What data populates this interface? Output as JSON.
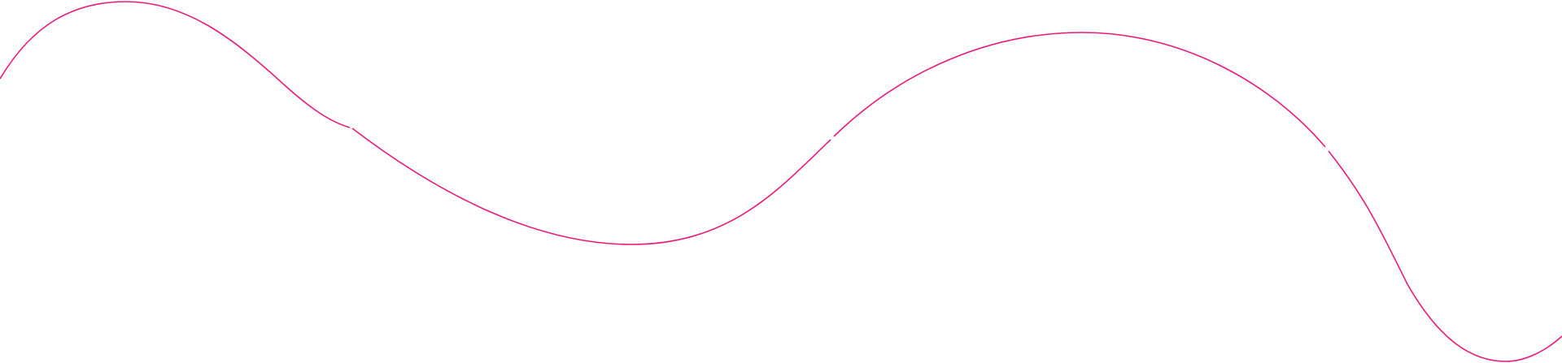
{
  "decoration": {
    "type": "wavy-line",
    "stroke_color": "#e8197b",
    "background_color": "#ffffff"
  }
}
